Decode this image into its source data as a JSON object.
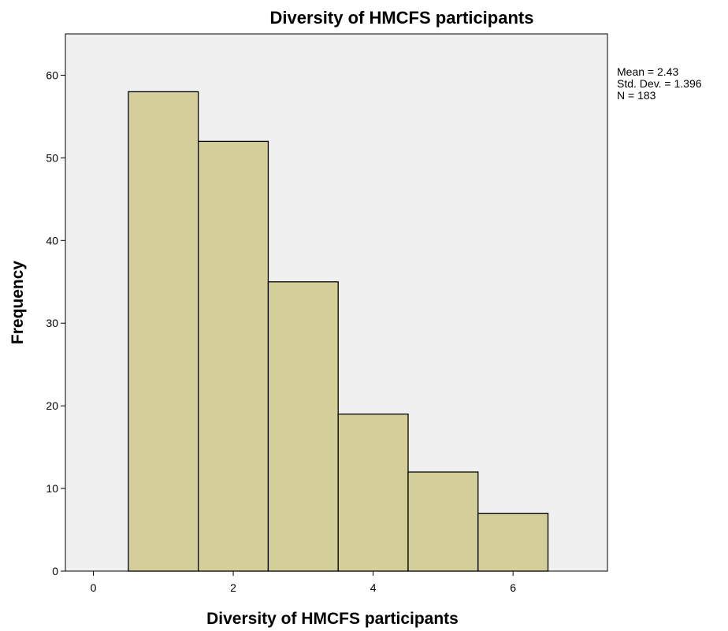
{
  "chart_data": {
    "type": "bar",
    "subtype": "histogram",
    "title": "Diversity of HMCFS participants",
    "xlabel": "Diversity of HMCFS participants",
    "ylabel": "Frequency",
    "bins": [
      {
        "from": 0.5,
        "to": 1.5,
        "value": 58
      },
      {
        "from": 1.5,
        "to": 2.5,
        "value": 52
      },
      {
        "from": 2.5,
        "to": 3.5,
        "value": 35
      },
      {
        "from": 3.5,
        "to": 4.5,
        "value": 19
      },
      {
        "from": 4.5,
        "to": 5.5,
        "value": 12
      },
      {
        "from": 5.5,
        "to": 6.5,
        "value": 7
      }
    ],
    "xlim": [
      -0.4,
      7.35
    ],
    "ylim": [
      0,
      65
    ],
    "xticks": [
      0,
      2,
      4,
      6
    ],
    "yticks": [
      0,
      10,
      20,
      30,
      40,
      50,
      60
    ],
    "grid": false,
    "legend": "none",
    "stats": {
      "mean": "Mean = 2.43",
      "std": "Std. Dev. = 1.396",
      "n": "N = 183"
    },
    "colors": {
      "bar_fill": "#d3ce9a",
      "bar_stroke": "#000000",
      "plot_background": "#f0f0f0"
    }
  }
}
